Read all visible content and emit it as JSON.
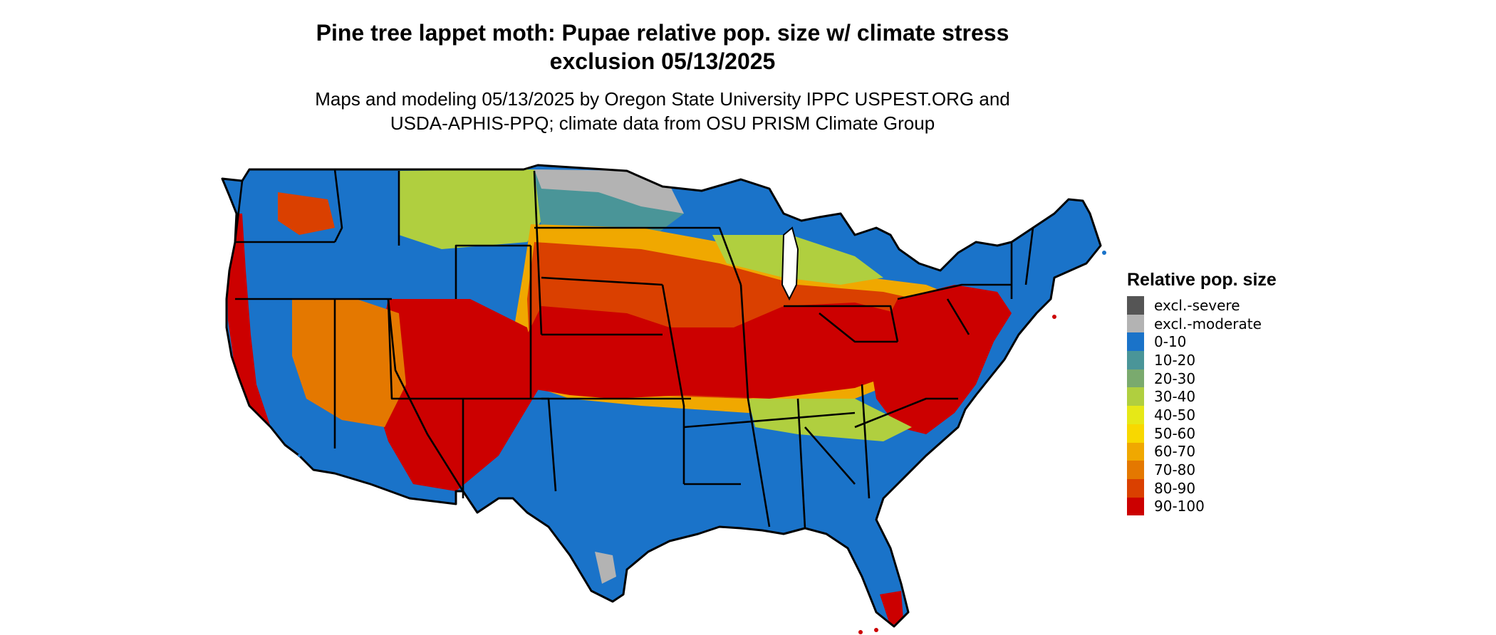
{
  "header": {
    "title_line1": "Pine tree lappet moth: Pupae relative pop. size w/ climate stress",
    "title_line2": "exclusion 05/13/2025",
    "subtitle_line1": "Maps and modeling 05/13/2025 by Oregon State University IPPC USPEST.ORG and",
    "subtitle_line2": "USDA-APHIS-PPQ; climate data from OSU PRISM Climate Group"
  },
  "legend": {
    "title": "Relative pop. size",
    "items": [
      {
        "label": "excl.-severe",
        "color": "#555555"
      },
      {
        "label": "excl.-moderate",
        "color": "#b3b3b3"
      },
      {
        "label": "0-10",
        "color": "#1a73c9"
      },
      {
        "label": "10-20",
        "color": "#4a9598"
      },
      {
        "label": "20-30",
        "color": "#7aaa6e"
      },
      {
        "label": "30-40",
        "color": "#b0cf3f"
      },
      {
        "label": "40-50",
        "color": "#e6e817"
      },
      {
        "label": "50-60",
        "color": "#f8d800"
      },
      {
        "label": "60-70",
        "color": "#f0a800"
      },
      {
        "label": "70-80",
        "color": "#e47800"
      },
      {
        "label": "80-90",
        "color": "#da4000"
      },
      {
        "label": "90-100",
        "color": "#cc0000"
      }
    ]
  },
  "map": {
    "region": "contiguous-united-states",
    "zone_colors": {
      "blue": "#1a73c9",
      "teal": "#4a9598",
      "green": "#7aaa6e",
      "lime": "#b0cf3f",
      "yellow": "#e6e817",
      "gold": "#f8d800",
      "orange": "#f0a800",
      "dark_orange": "#e47800",
      "red_orange": "#da4000",
      "red": "#cc0000",
      "grey": "#b3b3b3"
    }
  }
}
